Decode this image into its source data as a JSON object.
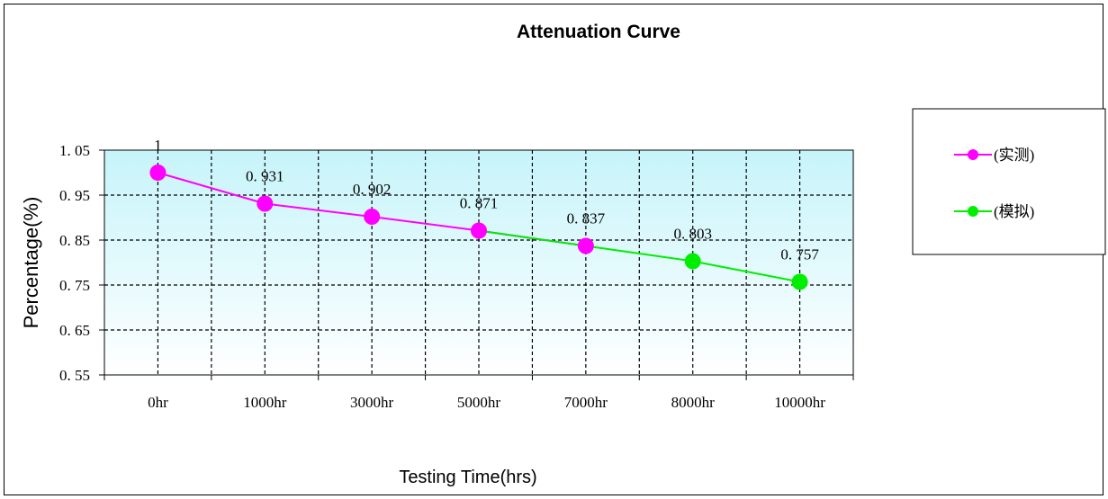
{
  "chart_data": {
    "type": "line",
    "title": "Attenuation Curve",
    "xlabel": "Testing Time(hrs)",
    "ylabel": "Percentage(%)",
    "categories": [
      "0hr",
      "1000hr",
      "3000hr",
      "5000hr",
      "7000hr",
      "8000hr",
      "10000hr"
    ],
    "y_ticks": [
      "1. 05",
      "0. 95",
      "0. 85",
      "0. 75",
      "0. 65",
      "0. 55"
    ],
    "ylim": [
      0.55,
      1.05
    ],
    "grid": true,
    "legend_position": "right",
    "series": [
      {
        "name": "(实测)",
        "color": "#ff00ff",
        "points": [
          {
            "x": "0hr",
            "y": 1,
            "label": "1"
          },
          {
            "x": "1000hr",
            "y": 0.931,
            "label": "0. 931"
          },
          {
            "x": "3000hr",
            "y": 0.902,
            "label": "0. 902"
          },
          {
            "x": "5000hr",
            "y": 0.871,
            "label": "0. 871"
          },
          {
            "x": "7000hr",
            "y": 0.837,
            "label": "0. 837"
          }
        ]
      },
      {
        "name": "(模拟)",
        "color": "#00ee00",
        "points": [
          {
            "x": "5000hr",
            "y": 0.871,
            "label": ""
          },
          {
            "x": "7000hr",
            "y": 0.837,
            "label": ""
          },
          {
            "x": "8000hr",
            "y": 0.803,
            "label": "0. 803"
          },
          {
            "x": "10000hr",
            "y": 0.757,
            "label": "0. 757"
          }
        ]
      }
    ]
  }
}
